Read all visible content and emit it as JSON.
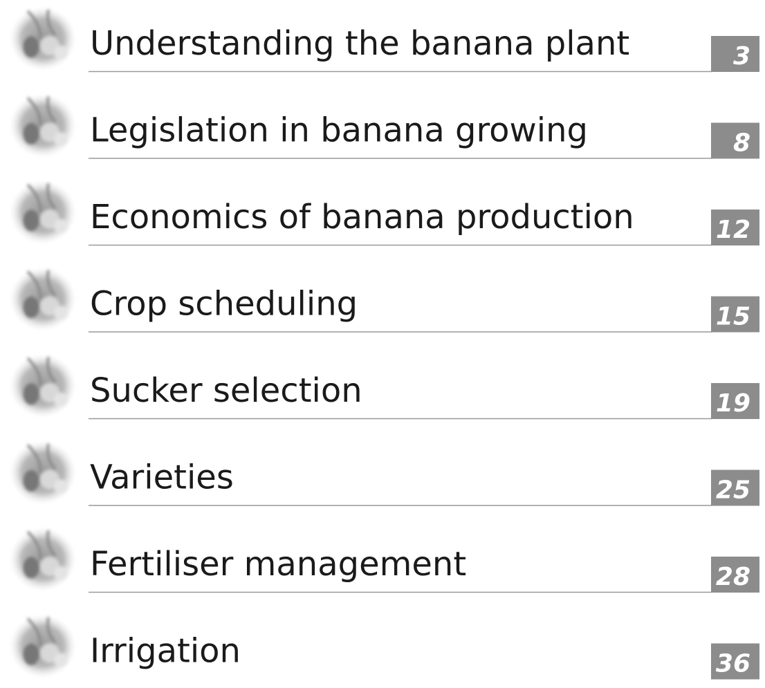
{
  "entries": [
    {
      "title": "Understanding the banana plant",
      "page": 3
    },
    {
      "title": "Legislation in banana growing",
      "page": 8
    },
    {
      "title": "Economics of banana production",
      "page": 12
    },
    {
      "title": "Crop scheduling",
      "page": 15
    },
    {
      "title": "Sucker selection",
      "page": 19
    },
    {
      "title": "Varieties",
      "page": 25
    },
    {
      "title": "Fertiliser management",
      "page": 28
    },
    {
      "title": "Irrigation",
      "page": 36
    }
  ]
}
